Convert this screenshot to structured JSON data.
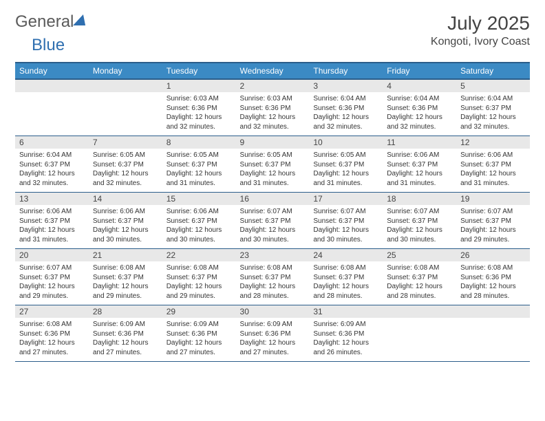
{
  "brand": {
    "part1": "General",
    "part2": "Blue"
  },
  "title": "July 2025",
  "location": "Kongoti, Ivory Coast",
  "colors": {
    "header_bg": "#3b8ac4",
    "header_border": "#2a5d8a",
    "daynum_bg": "#e8e8e8",
    "text": "#333333",
    "brand_blue": "#2f6fb0"
  },
  "weekdays": [
    "Sunday",
    "Monday",
    "Tuesday",
    "Wednesday",
    "Thursday",
    "Friday",
    "Saturday"
  ],
  "weeks": [
    [
      {
        "blank": true
      },
      {
        "blank": true
      },
      {
        "num": "1",
        "sunrise": "Sunrise: 6:03 AM",
        "sunset": "Sunset: 6:36 PM",
        "day1": "Daylight: 12 hours",
        "day2": "and 32 minutes."
      },
      {
        "num": "2",
        "sunrise": "Sunrise: 6:03 AM",
        "sunset": "Sunset: 6:36 PM",
        "day1": "Daylight: 12 hours",
        "day2": "and 32 minutes."
      },
      {
        "num": "3",
        "sunrise": "Sunrise: 6:04 AM",
        "sunset": "Sunset: 6:36 PM",
        "day1": "Daylight: 12 hours",
        "day2": "and 32 minutes."
      },
      {
        "num": "4",
        "sunrise": "Sunrise: 6:04 AM",
        "sunset": "Sunset: 6:36 PM",
        "day1": "Daylight: 12 hours",
        "day2": "and 32 minutes."
      },
      {
        "num": "5",
        "sunrise": "Sunrise: 6:04 AM",
        "sunset": "Sunset: 6:37 PM",
        "day1": "Daylight: 12 hours",
        "day2": "and 32 minutes."
      }
    ],
    [
      {
        "num": "6",
        "sunrise": "Sunrise: 6:04 AM",
        "sunset": "Sunset: 6:37 PM",
        "day1": "Daylight: 12 hours",
        "day2": "and 32 minutes."
      },
      {
        "num": "7",
        "sunrise": "Sunrise: 6:05 AM",
        "sunset": "Sunset: 6:37 PM",
        "day1": "Daylight: 12 hours",
        "day2": "and 32 minutes."
      },
      {
        "num": "8",
        "sunrise": "Sunrise: 6:05 AM",
        "sunset": "Sunset: 6:37 PM",
        "day1": "Daylight: 12 hours",
        "day2": "and 31 minutes."
      },
      {
        "num": "9",
        "sunrise": "Sunrise: 6:05 AM",
        "sunset": "Sunset: 6:37 PM",
        "day1": "Daylight: 12 hours",
        "day2": "and 31 minutes."
      },
      {
        "num": "10",
        "sunrise": "Sunrise: 6:05 AM",
        "sunset": "Sunset: 6:37 PM",
        "day1": "Daylight: 12 hours",
        "day2": "and 31 minutes."
      },
      {
        "num": "11",
        "sunrise": "Sunrise: 6:06 AM",
        "sunset": "Sunset: 6:37 PM",
        "day1": "Daylight: 12 hours",
        "day2": "and 31 minutes."
      },
      {
        "num": "12",
        "sunrise": "Sunrise: 6:06 AM",
        "sunset": "Sunset: 6:37 PM",
        "day1": "Daylight: 12 hours",
        "day2": "and 31 minutes."
      }
    ],
    [
      {
        "num": "13",
        "sunrise": "Sunrise: 6:06 AM",
        "sunset": "Sunset: 6:37 PM",
        "day1": "Daylight: 12 hours",
        "day2": "and 31 minutes."
      },
      {
        "num": "14",
        "sunrise": "Sunrise: 6:06 AM",
        "sunset": "Sunset: 6:37 PM",
        "day1": "Daylight: 12 hours",
        "day2": "and 30 minutes."
      },
      {
        "num": "15",
        "sunrise": "Sunrise: 6:06 AM",
        "sunset": "Sunset: 6:37 PM",
        "day1": "Daylight: 12 hours",
        "day2": "and 30 minutes."
      },
      {
        "num": "16",
        "sunrise": "Sunrise: 6:07 AM",
        "sunset": "Sunset: 6:37 PM",
        "day1": "Daylight: 12 hours",
        "day2": "and 30 minutes."
      },
      {
        "num": "17",
        "sunrise": "Sunrise: 6:07 AM",
        "sunset": "Sunset: 6:37 PM",
        "day1": "Daylight: 12 hours",
        "day2": "and 30 minutes."
      },
      {
        "num": "18",
        "sunrise": "Sunrise: 6:07 AM",
        "sunset": "Sunset: 6:37 PM",
        "day1": "Daylight: 12 hours",
        "day2": "and 30 minutes."
      },
      {
        "num": "19",
        "sunrise": "Sunrise: 6:07 AM",
        "sunset": "Sunset: 6:37 PM",
        "day1": "Daylight: 12 hours",
        "day2": "and 29 minutes."
      }
    ],
    [
      {
        "num": "20",
        "sunrise": "Sunrise: 6:07 AM",
        "sunset": "Sunset: 6:37 PM",
        "day1": "Daylight: 12 hours",
        "day2": "and 29 minutes."
      },
      {
        "num": "21",
        "sunrise": "Sunrise: 6:08 AM",
        "sunset": "Sunset: 6:37 PM",
        "day1": "Daylight: 12 hours",
        "day2": "and 29 minutes."
      },
      {
        "num": "22",
        "sunrise": "Sunrise: 6:08 AM",
        "sunset": "Sunset: 6:37 PM",
        "day1": "Daylight: 12 hours",
        "day2": "and 29 minutes."
      },
      {
        "num": "23",
        "sunrise": "Sunrise: 6:08 AM",
        "sunset": "Sunset: 6:37 PM",
        "day1": "Daylight: 12 hours",
        "day2": "and 28 minutes."
      },
      {
        "num": "24",
        "sunrise": "Sunrise: 6:08 AM",
        "sunset": "Sunset: 6:37 PM",
        "day1": "Daylight: 12 hours",
        "day2": "and 28 minutes."
      },
      {
        "num": "25",
        "sunrise": "Sunrise: 6:08 AM",
        "sunset": "Sunset: 6:37 PM",
        "day1": "Daylight: 12 hours",
        "day2": "and 28 minutes."
      },
      {
        "num": "26",
        "sunrise": "Sunrise: 6:08 AM",
        "sunset": "Sunset: 6:36 PM",
        "day1": "Daylight: 12 hours",
        "day2": "and 28 minutes."
      }
    ],
    [
      {
        "num": "27",
        "sunrise": "Sunrise: 6:08 AM",
        "sunset": "Sunset: 6:36 PM",
        "day1": "Daylight: 12 hours",
        "day2": "and 27 minutes."
      },
      {
        "num": "28",
        "sunrise": "Sunrise: 6:09 AM",
        "sunset": "Sunset: 6:36 PM",
        "day1": "Daylight: 12 hours",
        "day2": "and 27 minutes."
      },
      {
        "num": "29",
        "sunrise": "Sunrise: 6:09 AM",
        "sunset": "Sunset: 6:36 PM",
        "day1": "Daylight: 12 hours",
        "day2": "and 27 minutes."
      },
      {
        "num": "30",
        "sunrise": "Sunrise: 6:09 AM",
        "sunset": "Sunset: 6:36 PM",
        "day1": "Daylight: 12 hours",
        "day2": "and 27 minutes."
      },
      {
        "num": "31",
        "sunrise": "Sunrise: 6:09 AM",
        "sunset": "Sunset: 6:36 PM",
        "day1": "Daylight: 12 hours",
        "day2": "and 26 minutes."
      },
      {
        "blank": true
      },
      {
        "blank": true
      }
    ]
  ]
}
